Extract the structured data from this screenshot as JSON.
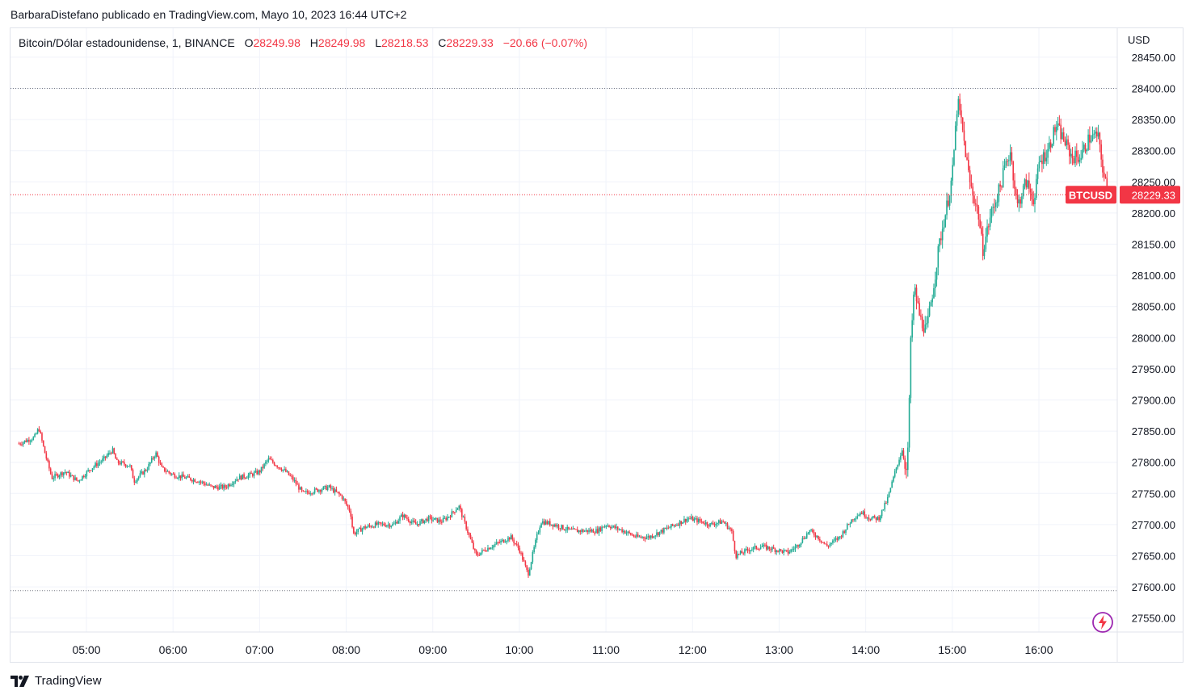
{
  "header": {
    "published_by": "BarbaraDistefano publicado en TradingView.com, Mayo 10, 2023 16:44 UTC+2"
  },
  "legend": {
    "symbol": "Bitcoin/Dólar estadounidense, 1, BINANCE",
    "open_label": "O",
    "open_value": "28249.98",
    "high_label": "H",
    "high_value": "28249.98",
    "low_label": "L",
    "low_value": "28218.53",
    "close_label": "C",
    "close_value": "28229.33",
    "change": "−20.66 (−0.07%)"
  },
  "price_tag": {
    "ticker": "BTCUSD",
    "price": "28229.33"
  },
  "footer": {
    "brand": "TradingView"
  },
  "icons": {
    "logo": "tradingview-logo-icon",
    "lightning": "lightning-icon"
  },
  "colors": {
    "up": "#22ab94",
    "down": "#f23645",
    "grid": "#f0f3fa",
    "text": "#131722"
  },
  "chart_data": {
    "type": "candlestick",
    "currency": "USD",
    "y_ticks": [
      27550,
      27600,
      27650,
      27700,
      27750,
      27800,
      27850,
      27900,
      27950,
      28000,
      28050,
      28100,
      28150,
      28200,
      28250,
      28300,
      28350,
      28400,
      28450
    ],
    "y_tick_labels": [
      "27550.00",
      "27600.00",
      "27650.00",
      "27700.00",
      "27750.00",
      "27800.00",
      "27850.00",
      "27900.00",
      "27950.00",
      "28000.00",
      "28050.00",
      "28100.00",
      "28150.00",
      "28200.00",
      "28250.00",
      "28300.00",
      "28350.00",
      "28400.00",
      "28450.00"
    ],
    "x_ticks": [
      "05:00",
      "06:00",
      "07:00",
      "08:00",
      "09:00",
      "10:00",
      "11:00",
      "12:00",
      "13:00",
      "14:00",
      "15:00",
      "16:00"
    ],
    "ylim": [
      27515,
      28480
    ],
    "x_range_hours": [
      4.2,
      17.24
    ],
    "session_high": 28400,
    "session_low": 27594,
    "last_price": 28229.33,
    "price_path": [
      [
        4.22,
        27830
      ],
      [
        4.4,
        27840
      ],
      [
        4.45,
        27855
      ],
      [
        4.52,
        27815
      ],
      [
        4.6,
        27775
      ],
      [
        4.75,
        27785
      ],
      [
        4.9,
        27770
      ],
      [
        5.05,
        27790
      ],
      [
        5.2,
        27805
      ],
      [
        5.3,
        27820
      ],
      [
        5.35,
        27800
      ],
      [
        5.5,
        27795
      ],
      [
        5.55,
        27770
      ],
      [
        5.7,
        27790
      ],
      [
        5.8,
        27815
      ],
      [
        5.87,
        27790
      ],
      [
        6.0,
        27780
      ],
      [
        6.15,
        27775
      ],
      [
        6.3,
        27770
      ],
      [
        6.45,
        27760
      ],
      [
        6.6,
        27760
      ],
      [
        6.75,
        27775
      ],
      [
        6.9,
        27780
      ],
      [
        7.0,
        27785
      ],
      [
        7.1,
        27805
      ],
      [
        7.2,
        27795
      ],
      [
        7.3,
        27785
      ],
      [
        7.4,
        27770
      ],
      [
        7.5,
        27750
      ],
      [
        7.65,
        27755
      ],
      [
        7.8,
        27760
      ],
      [
        7.95,
        27745
      ],
      [
        8.05,
        27720
      ],
      [
        8.08,
        27685
      ],
      [
        8.2,
        27695
      ],
      [
        8.35,
        27700
      ],
      [
        8.55,
        27700
      ],
      [
        8.65,
        27715
      ],
      [
        8.8,
        27700
      ],
      [
        8.95,
        27710
      ],
      [
        9.1,
        27705
      ],
      [
        9.2,
        27715
      ],
      [
        9.3,
        27730
      ],
      [
        9.4,
        27690
      ],
      [
        9.5,
        27650
      ],
      [
        9.6,
        27660
      ],
      [
        9.75,
        27670
      ],
      [
        9.9,
        27680
      ],
      [
        10.0,
        27660
      ],
      [
        10.1,
        27620
      ],
      [
        10.2,
        27680
      ],
      [
        10.25,
        27705
      ],
      [
        10.4,
        27700
      ],
      [
        10.6,
        27690
      ],
      [
        10.9,
        27690
      ],
      [
        11.0,
        27700
      ],
      [
        11.2,
        27690
      ],
      [
        11.35,
        27680
      ],
      [
        11.5,
        27680
      ],
      [
        11.65,
        27690
      ],
      [
        11.8,
        27700
      ],
      [
        11.95,
        27710
      ],
      [
        12.1,
        27705
      ],
      [
        12.2,
        27700
      ],
      [
        12.35,
        27705
      ],
      [
        12.45,
        27690
      ],
      [
        12.5,
        27650
      ],
      [
        12.65,
        27660
      ],
      [
        12.8,
        27665
      ],
      [
        12.95,
        27660
      ],
      [
        13.1,
        27655
      ],
      [
        13.2,
        27665
      ],
      [
        13.35,
        27690
      ],
      [
        13.45,
        27680
      ],
      [
        13.55,
        27665
      ],
      [
        13.7,
        27680
      ],
      [
        13.85,
        27710
      ],
      [
        13.95,
        27720
      ],
      [
        14.05,
        27710
      ],
      [
        14.15,
        27710
      ],
      [
        14.25,
        27740
      ],
      [
        14.35,
        27790
      ],
      [
        14.42,
        27820
      ],
      [
        14.48,
        27780
      ],
      [
        14.52,
        27990
      ],
      [
        14.56,
        28080
      ],
      [
        14.63,
        28030
      ],
      [
        14.7,
        28010
      ],
      [
        14.78,
        28080
      ],
      [
        14.85,
        28150
      ],
      [
        14.95,
        28220
      ],
      [
        15.0,
        28260
      ],
      [
        15.06,
        28380
      ],
      [
        15.1,
        28350
      ],
      [
        15.2,
        28250
      ],
      [
        15.3,
        28200
      ],
      [
        15.35,
        28140
      ],
      [
        15.45,
        28200
      ],
      [
        15.55,
        28240
      ],
      [
        15.6,
        28270
      ],
      [
        15.67,
        28300
      ],
      [
        15.75,
        28210
      ],
      [
        15.85,
        28250
      ],
      [
        15.95,
        28220
      ],
      [
        16.0,
        28280
      ],
      [
        16.1,
        28300
      ],
      [
        16.2,
        28340
      ],
      [
        16.28,
        28320
      ],
      [
        16.38,
        28290
      ],
      [
        16.48,
        28290
      ],
      [
        16.58,
        28320
      ],
      [
        16.68,
        28325
      ],
      [
        16.75,
        28260
      ],
      [
        16.8,
        28229
      ]
    ]
  }
}
